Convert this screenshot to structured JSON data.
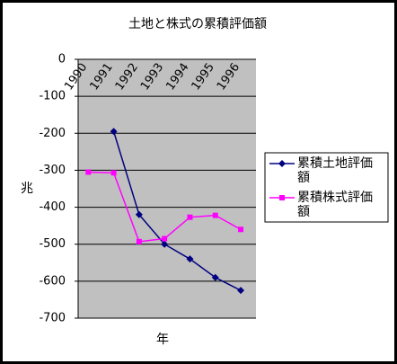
{
  "chart_data": {
    "type": "line",
    "title": "土地と株式の累積評価額",
    "x_label": "年",
    "y_label": "兆",
    "categories": [
      "1990",
      "1991",
      "1992",
      "1993",
      "1994",
      "1995",
      "1996"
    ],
    "series": [
      {
        "name": "累積土地評価額",
        "color": "#000080",
        "marker": "diamond",
        "values": [
          null,
          -195,
          -420,
          -500,
          -540,
          -590,
          -625
        ]
      },
      {
        "name": "累積株式評価額",
        "color": "#ff00ff",
        "marker": "square",
        "values": [
          -305,
          -307,
          -493,
          -485,
          -427,
          -422,
          -460
        ]
      }
    ],
    "ylim": [
      -700,
      0
    ],
    "yticks": [
      0,
      -100,
      -200,
      -300,
      -400,
      -500,
      -600,
      -700
    ],
    "grid": true,
    "legend": "right"
  }
}
